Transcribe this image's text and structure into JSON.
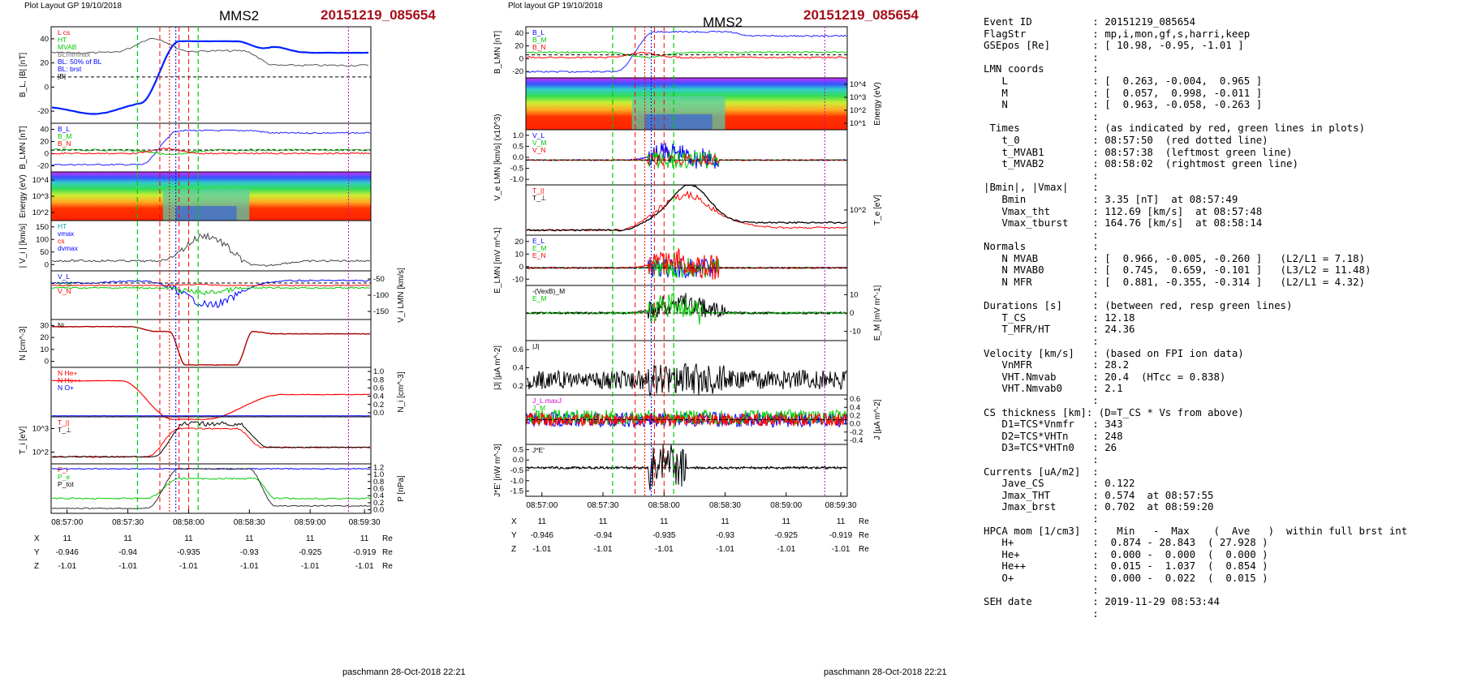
{
  "left": {
    "header": "Plot Layout GP 19/10/2018",
    "spacecraft": "MMS2",
    "event": "20151219_085654",
    "footer": "paschmann 28-Oct-2018 22:21",
    "time_ticks": [
      "08:57:00",
      "08:57:30",
      "08:58:00",
      "08:58:30",
      "08:59:00",
      "08:59:30"
    ],
    "pos_rows": [
      {
        "label": "X",
        "values": [
          "11",
          "11",
          "11",
          "11",
          "11",
          "11"
        ],
        "unit": "Re"
      },
      {
        "label": "Y",
        "values": [
          "-0.946",
          "-0.94",
          "-0.935",
          "-0.93",
          "-0.925",
          "-0.919"
        ],
        "unit": "Re"
      },
      {
        "label": "Z",
        "values": [
          "-1.01",
          "-1.01",
          "-1.01",
          "-1.01",
          "-1.01",
          "-1.01"
        ],
        "unit": "Re"
      }
    ],
    "panels": [
      {
        "ylabel": "B_L, |B| [nT]",
        "ticks": [
          "40",
          "20",
          "0",
          "-20"
        ],
        "legend": [
          "L cs",
          "HT",
          "MVAB",
          "BLminmax",
          "BL: 50% of BL",
          "BL: brst",
          "|B|"
        ]
      },
      {
        "ylabel": "B_LMN [nT]",
        "ticks": [
          "40",
          "20",
          "0",
          "-20"
        ],
        "legend": [
          "B_L",
          "B_M",
          "B_N"
        ]
      },
      {
        "ylabel": "Energy (eV)",
        "ticks": [
          "10^4",
          "10^3",
          "10^2"
        ],
        "legend": []
      },
      {
        "ylabel": "| V_i | [km/s]",
        "ticks": [
          "150",
          "100",
          "50",
          "0"
        ],
        "legend": [
          "HT",
          "vmax",
          "cs",
          "dvmax"
        ]
      },
      {
        "ylabel": "V_i LMN [km/s]",
        "ticks": [
          "-50",
          "-100",
          "-150"
        ],
        "legend": [
          "V_L",
          "V_M",
          "V_N"
        ]
      },
      {
        "ylabel": "N [cm^-3]",
        "ticks": [
          "30",
          "20",
          "10",
          "0"
        ],
        "legend": [
          "Ni"
        ]
      },
      {
        "ylabel": "N_i [cm^-3]",
        "ticks": [
          "1.0",
          "0.8",
          "0.6",
          "0.4",
          "0.2",
          "0.0"
        ],
        "legend": [
          "N He+",
          "N He++",
          "N O+"
        ]
      },
      {
        "ylabel": "T_i [eV]",
        "ticks": [
          "10^3",
          "10^2"
        ],
        "legend": [
          "T_||",
          "T_⊥"
        ]
      },
      {
        "ylabel": "P [nPa]",
        "ticks": [
          "1.2",
          "1.0",
          "0.8",
          "0.6",
          "0.4",
          "0.2",
          "0.0"
        ],
        "legend": [
          "P_i",
          "P_e",
          "P_tot"
        ]
      }
    ]
  },
  "middle": {
    "header": "Plot layout GP 19/10/2018",
    "spacecraft": "MMS2",
    "event": "20151219_085654",
    "footer": "paschmann 28-Oct-2018 22:21",
    "time_ticks": [
      "08:57:00",
      "08:57:30",
      "08:58:00",
      "08:58:30",
      "08:59:00",
      "08:59:30"
    ],
    "pos_rows": [
      {
        "label": "X",
        "values": [
          "11",
          "11",
          "11",
          "11",
          "11",
          "11"
        ],
        "unit": "Re"
      },
      {
        "label": "Y",
        "values": [
          "-0.946",
          "-0.94",
          "-0.935",
          "-0.93",
          "-0.925",
          "-0.919"
        ],
        "unit": "Re"
      },
      {
        "label": "Z",
        "values": [
          "-1.01",
          "-1.01",
          "-1.01",
          "-1.01",
          "-1.01",
          "-1.01"
        ],
        "unit": "Re"
      }
    ],
    "panels": [
      {
        "ylabel": "B_LMN [nT]",
        "ticks": [
          "40",
          "20",
          "0",
          "-20"
        ],
        "legend": [
          "B_L",
          "B_M",
          "B_N"
        ]
      },
      {
        "ylabel": "Energy (eV)",
        "ticks": [
          "10^4",
          "10^3",
          "10^2",
          "10^1"
        ],
        "legend": []
      },
      {
        "ylabel": "V_e LMN [km/s] (x10^3)",
        "ticks": [
          "1.0",
          "0.5",
          "0.0",
          "-0.5",
          "-1.0"
        ],
        "legend": [
          "V_L",
          "V_M",
          "V_N"
        ]
      },
      {
        "ylabel": "T_e [eV]",
        "ticks": [
          "10^2"
        ],
        "legend": [
          "T_||",
          "T_⊥"
        ]
      },
      {
        "ylabel": "E_LMN [mV m^-1]",
        "ticks": [
          "20",
          "10",
          "0",
          "-10"
        ],
        "legend": [
          "E_L",
          "E_M",
          "E_N"
        ]
      },
      {
        "ylabel": "E_M [mV m^-1]",
        "ticks": [
          "10",
          "0",
          "-10"
        ],
        "legend": [
          "-(VexB)_M",
          "E_M"
        ]
      },
      {
        "ylabel": "|J| [µA m^-2]",
        "ticks": [
          "0.6",
          "0.4",
          "0.2"
        ],
        "legend": [
          "|J|"
        ]
      },
      {
        "ylabel": "J [µA m^-2]",
        "ticks": [
          "0.6",
          "0.4",
          "0.2",
          "0.0",
          "-0.2",
          "-0.4"
        ],
        "legend": [
          "J_L maxJ",
          "J_M",
          "J_N"
        ]
      },
      {
        "ylabel": "J*E' [nW m^-3]",
        "ticks": [
          "0.5",
          "0.0",
          "-0.5",
          "-1.0",
          "-1.5"
        ],
        "legend": [
          "J*E'"
        ]
      }
    ]
  },
  "info_lines": [
    "Event ID          : 20151219_085654",
    "FlagStr           : mp,i,mon,gf,s,harri,keep",
    "GSEpos [Re]       : [ 10.98, -0.95, -1.01 ]",
    "                  :",
    "LMN coords        :",
    "   L              : [  0.263, -0.004,  0.965 ]",
    "   M              : [  0.057,  0.998, -0.011 ]",
    "   N              : [  0.963, -0.058, -0.263 ]",
    "                  :",
    " Times            : (as indicated by red, green lines in plots)",
    "   t_0            : 08:57:50  (red dotted line)",
    "   t_MVAB1        : 08:57:38  (leftmost green line)",
    "   t_MVAB2        : 08:58:02  (rightmost green line)",
    "                  :",
    "|Bmin|, |Vmax|    :",
    "   Bmin           : 3.35 [nT]  at 08:57:49",
    "   Vmax_tht       : 112.69 [km/s]  at 08:57:48",
    "   Vmax_tburst    : 164.76 [km/s]  at 08:58:14",
    "                  :",
    "Normals           :",
    "   N MVAB         : [  0.966, -0.005, -0.260 ]   (L2/L1 = 7.18)",
    "   N MVAB0        : [  0.745,  0.659, -0.101 ]   (L3/L2 = 11.48)",
    "   N MFR          : [  0.881, -0.355, -0.314 ]   (L2/L1 = 4.32)",
    "                  :",
    "Durations [s]     : (between red, resp green lines)",
    "   T_CS           : 12.18",
    "   T_MFR/HT       : 24.36",
    "                  :",
    "Velocity [km/s]   : (based on FPI ion data)",
    "   VnMFR          : 28.2",
    "   VHT.Nmvab      : 20.4  (HTcc = 0.838)",
    "   VHT.Nmvab0     : 2.1",
    "                  :",
    "CS thickness [km]: (D=T_CS * Vs from above)",
    "   D1=TCS*Vnmfr   : 343",
    "   D2=TCS*VHTn    : 248",
    "   D3=TCS*VHTn0   : 26",
    "                  :",
    "Currents [uA/m2]  :",
    "   Jave_CS        : 0.122",
    "   Jmax_THT       : 0.574  at 08:57:55",
    "   Jmax_brst      : 0.702  at 08:59:20",
    "                  :",
    "HPCA mom [1/cm3]  :   Min   -  Max    (  Ave   )  within full brst int",
    "   H+             :  0.874 - 28.843  ( 27.928 )",
    "   He+            :  0.000 -  0.000  (  0.000 )",
    "   He++           :  0.015 -  1.037  (  0.854 )",
    "   O+             :  0.000 -  0.022  (  0.015 )",
    "                  :",
    "SEH date          : 2019-11-29 08:53:44",
    "                  :"
  ],
  "colors": {
    "event_red": "#a40f1a",
    "blue": "#0000ff",
    "red": "#ff0000",
    "green": "#00cc00",
    "black": "#000000",
    "magenta": "#cc00cc"
  }
}
